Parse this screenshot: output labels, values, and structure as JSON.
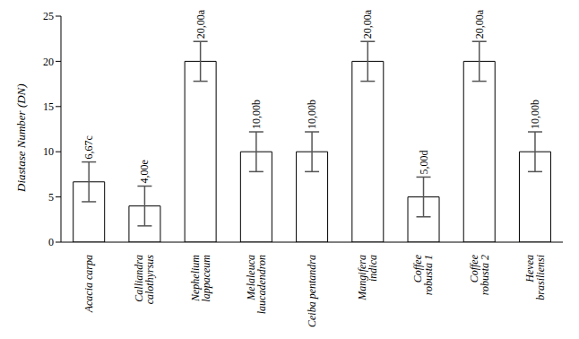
{
  "chart_data": {
    "type": "bar",
    "y_label": "Diastase Number (DN)",
    "categories": [
      "Acacia carpa",
      "Calliandra calothyrsus",
      "Nephelium lappaceum",
      "Melaleuca laucadendron",
      "Ceiba pentandra",
      "Mangifera indica",
      "Coffee robusta 1",
      "Coffee robusta 2",
      "Hevea brasiliensi"
    ],
    "values": [
      6.67,
      4,
      20,
      10,
      10,
      20,
      5,
      20,
      10
    ],
    "value_labels": [
      "6,67c",
      "4,00e",
      "20,00a",
      "10,00b",
      "10,00b",
      "20,00a",
      "5,00d",
      "20,00a",
      "10,00b"
    ],
    "error": [
      2.2,
      2.2,
      2.2,
      2.2,
      2.2,
      2.2,
      2.2,
      2.2,
      2.2
    ],
    "color": "#ffffff",
    "ylim": [
      0,
      25
    ],
    "yticks": [
      0,
      5,
      10,
      15,
      20,
      25
    ],
    "grid": false,
    "data_labels": true
  }
}
